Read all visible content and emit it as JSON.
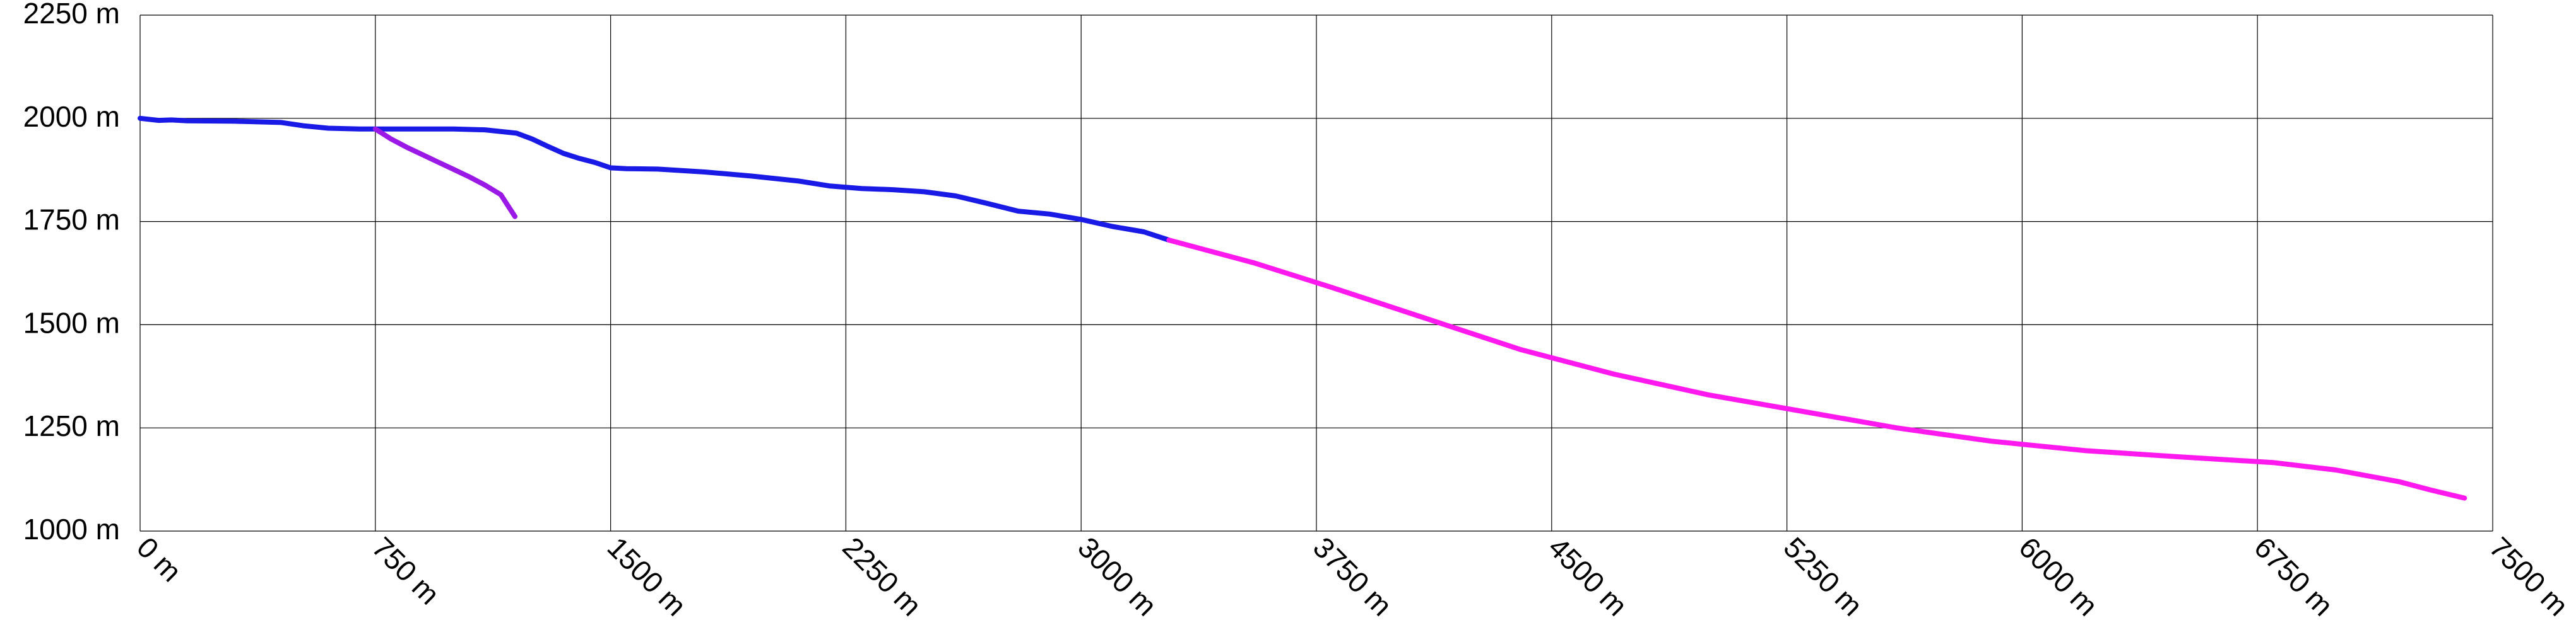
{
  "chart_data": {
    "type": "line",
    "title": "",
    "xlabel": "",
    "ylabel": "",
    "xlim": [
      0,
      7500
    ],
    "ylim": [
      1000,
      2250
    ],
    "grid": true,
    "x_ticks": [
      0,
      750,
      1500,
      2250,
      3000,
      3750,
      4500,
      5250,
      6000,
      6750,
      7500
    ],
    "x_tick_labels": [
      "0 m",
      "750 m",
      "1500 m",
      "2250 m",
      "3000 m",
      "3750 m",
      "4500 m",
      "5250 m",
      "6000 m",
      "6750 m",
      "7500 m"
    ],
    "y_ticks": [
      1000,
      1250,
      1500,
      1750,
      2000,
      2250
    ],
    "y_tick_labels": [
      "1000 m",
      "1250 m",
      "1500 m",
      "1750 m",
      "2000 m",
      "2250 m"
    ],
    "colors": {
      "background": "#ffffff",
      "grid": "#000000",
      "text": "#000000"
    },
    "series": [
      {
        "color": "#1a1ae6",
        "points": [
          [
            0,
            2000
          ],
          [
            60,
            1995
          ],
          [
            100,
            1996
          ],
          [
            150,
            1994
          ],
          [
            300,
            1993
          ],
          [
            450,
            1990
          ],
          [
            520,
            1982
          ],
          [
            600,
            1976
          ],
          [
            700,
            1974
          ],
          [
            750,
            1974
          ],
          [
            850,
            1974
          ],
          [
            1000,
            1974
          ],
          [
            1100,
            1972
          ],
          [
            1200,
            1964
          ],
          [
            1250,
            1950
          ],
          [
            1300,
            1932
          ],
          [
            1350,
            1915
          ],
          [
            1400,
            1903
          ],
          [
            1450,
            1893
          ],
          [
            1500,
            1880
          ],
          [
            1550,
            1878
          ],
          [
            1650,
            1877
          ],
          [
            1800,
            1870
          ],
          [
            1950,
            1860
          ],
          [
            2100,
            1848
          ],
          [
            2200,
            1836
          ],
          [
            2300,
            1830
          ],
          [
            2400,
            1827
          ],
          [
            2500,
            1822
          ],
          [
            2600,
            1812
          ],
          [
            2700,
            1794
          ],
          [
            2800,
            1775
          ],
          [
            2900,
            1768
          ],
          [
            3000,
            1755
          ],
          [
            3100,
            1738
          ],
          [
            3200,
            1725
          ],
          [
            3280,
            1705
          ]
        ]
      },
      {
        "color": "#ff19ee",
        "points": [
          [
            3280,
            1705
          ],
          [
            3550,
            1650
          ],
          [
            3800,
            1590
          ],
          [
            4100,
            1515
          ],
          [
            4400,
            1440
          ],
          [
            4700,
            1380
          ],
          [
            5000,
            1330
          ],
          [
            5300,
            1290
          ],
          [
            5600,
            1250
          ],
          [
            5900,
            1218
          ],
          [
            6200,
            1195
          ],
          [
            6500,
            1180
          ],
          [
            6800,
            1166
          ],
          [
            7000,
            1148
          ],
          [
            7200,
            1120
          ],
          [
            7300,
            1100
          ],
          [
            7410,
            1080
          ]
        ]
      },
      {
        "color": "#9a19e6",
        "points": [
          [
            750,
            1974
          ],
          [
            800,
            1950
          ],
          [
            850,
            1930
          ],
          [
            900,
            1912
          ],
          [
            950,
            1894
          ],
          [
            1000,
            1876
          ],
          [
            1050,
            1858
          ],
          [
            1100,
            1838
          ],
          [
            1150,
            1815
          ],
          [
            1195,
            1762
          ]
        ]
      }
    ]
  }
}
